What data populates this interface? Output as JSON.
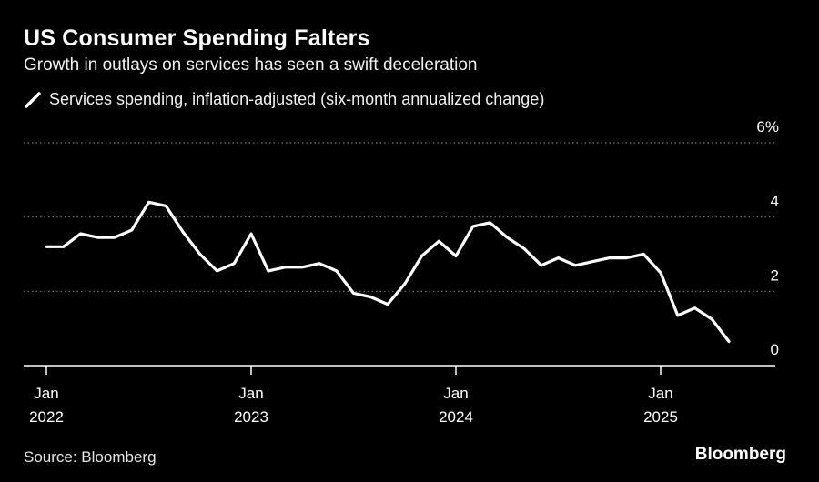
{
  "header": {
    "title": "US Consumer Spending Falters",
    "subtitle": "Growth in outlays on services has seen a swift deceleration"
  },
  "legend": {
    "label": "Services spending, inflation-adjusted (six-month annualized change)"
  },
  "footer": {
    "source": "Source: Bloomberg",
    "brand": "Bloomberg"
  },
  "colors": {
    "background": "#000000",
    "line": "#ffffff",
    "grid": "#7a7a7a"
  },
  "chart_data": {
    "type": "line",
    "title": "US Consumer Spending Falters",
    "subtitle": "Growth in outlays on services has seen a swift deceleration",
    "xlabel": "",
    "ylabel": "",
    "ylim": [
      0,
      6
    ],
    "y_ticks": [
      0,
      2,
      4,
      6
    ],
    "y_tick_labels": [
      "0",
      "2",
      "4",
      "6%"
    ],
    "x_ticks": [
      {
        "date": "2022-01",
        "month": "Jan",
        "year": "2022"
      },
      {
        "date": "2023-01",
        "month": "Jan",
        "year": "2023"
      },
      {
        "date": "2024-01",
        "month": "Jan",
        "year": "2024"
      },
      {
        "date": "2025-01",
        "month": "Jan",
        "year": "2025"
      }
    ],
    "x_range": [
      "2021-12",
      "2025-05"
    ],
    "grid": "horizontal-dotted",
    "legend_position": "top-left",
    "series": [
      {
        "name": "Services spending, inflation-adjusted (six-month annualized change)",
        "x": [
          "2022-01",
          "2022-02",
          "2022-03",
          "2022-04",
          "2022-05",
          "2022-06",
          "2022-07",
          "2022-08",
          "2022-09",
          "2022-10",
          "2022-11",
          "2022-12",
          "2023-01",
          "2023-02",
          "2023-03",
          "2023-04",
          "2023-05",
          "2023-06",
          "2023-07",
          "2023-08",
          "2023-09",
          "2023-10",
          "2023-11",
          "2023-12",
          "2024-01",
          "2024-02",
          "2024-03",
          "2024-04",
          "2024-05",
          "2024-06",
          "2024-07",
          "2024-08",
          "2024-09",
          "2024-10",
          "2024-11",
          "2024-12",
          "2025-01",
          "2025-02",
          "2025-03",
          "2025-04",
          "2025-05"
        ],
        "values": [
          3.2,
          3.2,
          3.55,
          3.45,
          3.45,
          3.65,
          4.4,
          4.3,
          3.6,
          3.0,
          2.55,
          2.75,
          3.55,
          2.55,
          2.65,
          2.65,
          2.75,
          2.55,
          1.95,
          1.85,
          1.65,
          2.2,
          2.95,
          3.35,
          2.95,
          3.75,
          3.85,
          3.45,
          3.15,
          2.7,
          2.9,
          2.7,
          2.8,
          2.9,
          2.9,
          3.0,
          2.5,
          1.35,
          1.55,
          1.25,
          0.65
        ]
      }
    ]
  }
}
